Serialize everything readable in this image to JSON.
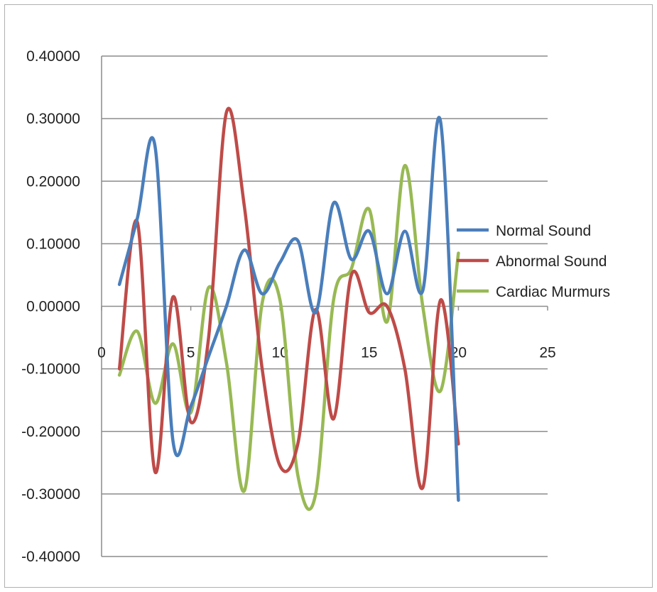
{
  "chart_data": {
    "type": "line",
    "title": "",
    "xlabel": "",
    "ylabel": "",
    "xlim": [
      0,
      25
    ],
    "ylim": [
      -0.4,
      0.4
    ],
    "x_ticks": [
      "0",
      "5",
      "10",
      "15",
      "20",
      "25"
    ],
    "y_ticks": [
      "0.40000",
      "0.30000",
      "0.20000",
      "0.10000",
      "0.00000",
      "-0.10000",
      "-0.20000",
      "-0.30000",
      "-0.40000"
    ],
    "grid": "horizontal",
    "legend_position": "right",
    "smooth": true,
    "x": [
      1,
      2,
      3,
      4,
      5,
      6,
      7,
      8,
      9,
      10,
      11,
      12,
      13,
      14,
      15,
      16,
      17,
      18,
      19,
      20
    ],
    "series": [
      {
        "name": "Normal Sound",
        "color": "#4a7ebb",
        "values": [
          0.035,
          0.14,
          0.255,
          -0.215,
          -0.16,
          -0.08,
          0.0,
          0.09,
          0.02,
          0.07,
          0.105,
          -0.01,
          0.165,
          0.075,
          0.12,
          0.02,
          0.12,
          0.025,
          0.295,
          -0.31
        ]
      },
      {
        "name": "Abnormal Sound",
        "color": "#be4b48",
        "values": [
          -0.1,
          0.135,
          -0.265,
          0.015,
          -0.185,
          -0.05,
          0.31,
          0.16,
          -0.1,
          -0.255,
          -0.22,
          -0.005,
          -0.18,
          0.05,
          -0.01,
          0.0,
          -0.1,
          -0.29,
          0.01,
          -0.22
        ]
      },
      {
        "name": "Cardiac Murmurs",
        "color": "#98b954",
        "values": [
          -0.11,
          -0.04,
          -0.155,
          -0.06,
          -0.17,
          0.03,
          -0.09,
          -0.295,
          0.005,
          0.01,
          -0.27,
          -0.3,
          0.01,
          0.06,
          0.155,
          -0.025,
          0.225,
          0.0,
          -0.135,
          0.085
        ]
      }
    ]
  }
}
